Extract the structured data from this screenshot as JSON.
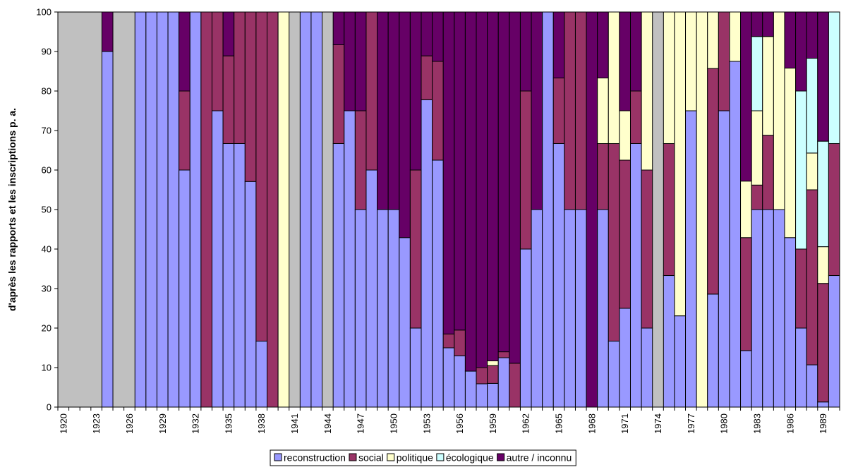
{
  "chart_data": {
    "type": "bar",
    "stacked": true,
    "title": "",
    "xlabel": "",
    "ylabel": "d'après les rapports et les inscriptions p. a.",
    "ylim": [
      0,
      100
    ],
    "yticks": [
      0,
      10,
      20,
      30,
      40,
      50,
      60,
      70,
      80,
      90,
      100
    ],
    "grid": false,
    "legend_position": "bottom",
    "plot_background": "#c0c0c0",
    "categories": [
      1920,
      1921,
      1922,
      1923,
      1924,
      1925,
      1926,
      1927,
      1928,
      1929,
      1930,
      1931,
      1932,
      1933,
      1934,
      1935,
      1936,
      1937,
      1938,
      1939,
      1940,
      1941,
      1942,
      1943,
      1944,
      1945,
      1946,
      1947,
      1948,
      1949,
      1950,
      1951,
      1952,
      1953,
      1954,
      1955,
      1956,
      1957,
      1958,
      1959,
      1960,
      1961,
      1962,
      1963,
      1964,
      1965,
      1966,
      1967,
      1968,
      1969,
      1970,
      1971,
      1972,
      1973,
      1974,
      1975,
      1976,
      1977,
      1978,
      1979,
      1980,
      1981,
      1982,
      1983,
      1984,
      1985,
      1986,
      1987,
      1988,
      1989,
      1990
    ],
    "tick_labels": [
      "1920",
      "1923",
      "1926",
      "1929",
      "1932",
      "1935",
      "1938",
      "1941",
      "1944",
      "1947",
      "1950",
      "1953",
      "1956",
      "1959",
      "1962",
      "1965",
      "1968",
      "1971",
      "1974",
      "1977",
      "1980",
      "1983",
      "1986",
      "1989"
    ],
    "series": [
      {
        "name": "reconstruction",
        "color": "#9999ff",
        "values": [
          0,
          0,
          0,
          0,
          90,
          0,
          0,
          100,
          100,
          100,
          100,
          60,
          100,
          0,
          75,
          66.7,
          66.7,
          57.1,
          16.7,
          0,
          0,
          0,
          100,
          100,
          0,
          66.7,
          75,
          50,
          60,
          50,
          50,
          42.9,
          20,
          77.8,
          62.5,
          15,
          13,
          9.1,
          5.9,
          6,
          12.5,
          0,
          40,
          50,
          100,
          66.7,
          50,
          50,
          0,
          50,
          16.7,
          25,
          66.7,
          20,
          0,
          33.3,
          23.1,
          75,
          0,
          28.6,
          75,
          87.5,
          14.3,
          50,
          50,
          50,
          42.9,
          20,
          10.7,
          1.3,
          33.3
        ]
      },
      {
        "name": "social",
        "color": "#993366",
        "values": [
          0,
          0,
          0,
          0,
          0,
          0,
          0,
          0,
          0,
          0,
          0,
          20,
          0,
          100,
          25,
          22.2,
          33.3,
          42.9,
          83.3,
          100,
          0,
          0,
          0,
          0,
          0,
          25,
          0,
          25,
          40,
          0,
          0,
          0,
          40,
          11.1,
          25,
          3.5,
          6.5,
          0,
          4.1,
          4.5,
          1.5,
          11.1,
          40,
          0,
          0,
          16.6,
          50,
          50,
          0,
          16.7,
          50,
          37.5,
          13.3,
          40,
          0,
          33.4,
          0,
          0,
          0,
          57.1,
          25,
          0,
          28.6,
          6.2,
          18.8,
          0,
          0,
          20,
          44.3,
          30,
          33.4
        ]
      },
      {
        "name": "politique",
        "color": "#ffffcc",
        "values": [
          0,
          0,
          0,
          0,
          0,
          0,
          0,
          0,
          0,
          0,
          0,
          0,
          0,
          0,
          0,
          0,
          0,
          0,
          0,
          0,
          100,
          0,
          0,
          0,
          0,
          0,
          0,
          0,
          0,
          0,
          0,
          0,
          0,
          0,
          0,
          0,
          0,
          0,
          0,
          1.2,
          0,
          0,
          0,
          0,
          0,
          0,
          0,
          0,
          0,
          16.6,
          33.3,
          12.5,
          0,
          40,
          0,
          33.3,
          76.9,
          25,
          100,
          14.3,
          0,
          12.5,
          14.3,
          18.8,
          25,
          50,
          42.9,
          0,
          9.3,
          9.3,
          0
        ]
      },
      {
        "name": "écologique",
        "color": "#ccffff",
        "values": [
          0,
          0,
          0,
          0,
          0,
          0,
          0,
          0,
          0,
          0,
          0,
          0,
          0,
          0,
          0,
          0,
          0,
          0,
          0,
          0,
          0,
          0,
          0,
          0,
          0,
          0,
          0,
          0,
          0,
          0,
          0,
          0,
          0,
          0,
          0,
          0,
          0,
          0,
          0,
          0,
          0,
          0,
          0,
          0,
          0,
          0,
          0,
          0,
          0,
          0,
          0,
          0,
          0,
          0,
          0,
          0,
          0,
          0,
          0,
          0,
          0,
          0,
          0,
          18.8,
          0,
          0,
          0,
          40,
          24,
          26.7,
          33.3
        ]
      },
      {
        "name": "autre / inconnu",
        "color": "#660066",
        "values": [
          0,
          0,
          0,
          0,
          10,
          0,
          0,
          0,
          0,
          0,
          0,
          20,
          0,
          0,
          0,
          11.1,
          0,
          0,
          0,
          0,
          0,
          0,
          0,
          0,
          0,
          8.3,
          25,
          25,
          0,
          50,
          50,
          57.1,
          40,
          11.1,
          12.5,
          81.5,
          80.5,
          90.9,
          90,
          88.3,
          86,
          88.9,
          20,
          50,
          0,
          16.7,
          0,
          0,
          100,
          16.7,
          0,
          25,
          20,
          0,
          0,
          0,
          0,
          0,
          0,
          0,
          0,
          0,
          42.8,
          6.2,
          6.2,
          0,
          14.2,
          20,
          11.7,
          32.7,
          0
        ]
      }
    ]
  }
}
